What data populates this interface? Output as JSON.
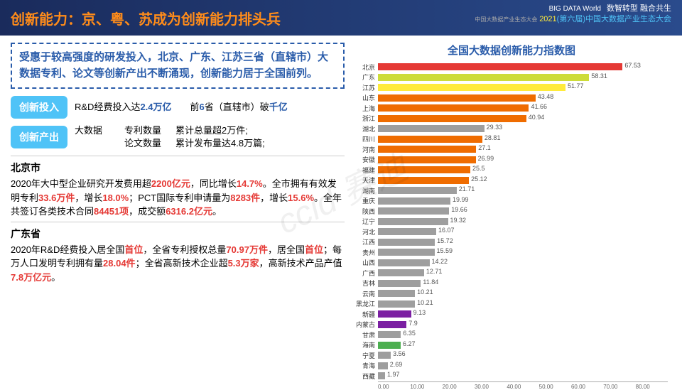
{
  "header": {
    "title": "创新能力：京、粤、苏成为创新能力排头兵",
    "logo": "BIG DATA World",
    "logo_sub": "中国大数据产业生态大会",
    "line1": "数智转型 融合共生",
    "line2_year": "2021",
    "line2_rest": "(第六届)中国大数据产业生态大会"
  },
  "summary": "受惠于较高强度的研发投入，北京、广东、江苏三省（直辖市）大数据专利、论文等创新产出不断涌现，创新能力居于全国前列。",
  "rows": [
    {
      "tag": "创新投入",
      "c1": "",
      "c2a": "R&D经费投入达",
      "c2a_hl": "2.4万亿",
      "c2b": "前",
      "c2b_hl": "6",
      "c2c": "省（直辖市）破",
      "c2c_hl": "千亿"
    },
    {
      "tag": "创新产出",
      "c1": "大数据",
      "l1": "专利数量",
      "l2": "论文数量",
      "r1": "累计总量超2万件;",
      "r2": "累计发布量达4.8万篇;"
    }
  ],
  "regions": [
    {
      "title": "北京市",
      "body": [
        {
          "t": "2020年大中型企业研究开发费用超",
          "r": "2200亿元"
        },
        {
          "t": "，同比增长",
          "r": "14.7%"
        },
        {
          "t": "。全市拥有有效发明专利",
          "r": "33.6万件"
        },
        {
          "t": "，增长",
          "r": "18.0%"
        },
        {
          "t": "；PCT国际专利申请量为",
          "r": "8283件"
        },
        {
          "t": "，增长",
          "r": "15.6%"
        },
        {
          "t": "。全年共签订各类技术合同",
          "r": "84451项"
        },
        {
          "t": "，成交额",
          "r": "6316.2亿元"
        },
        {
          "t": "。"
        }
      ]
    },
    {
      "title": "广东省",
      "body": [
        {
          "t": "2020年R&D经费投入居全国",
          "r": "首位"
        },
        {
          "t": "，全省专利授权总量",
          "r": "70.97万件"
        },
        {
          "t": "，居全国",
          "r": "首位"
        },
        {
          "t": "；每万人口发明专利拥有量",
          "r": "28.04件"
        },
        {
          "t": "；全省高新技术企业超",
          "r": "5.3万家"
        },
        {
          "t": "，高新技术产品产值",
          "r": "7.8万亿元"
        },
        {
          "t": "。"
        }
      ]
    }
  ],
  "chart": {
    "title": "全国大数据创新能力指数图",
    "xmax": 80,
    "xticks": [
      "0.00",
      "10.00",
      "20.00",
      "30.00",
      "40.00",
      "50.00",
      "60.00",
      "70.00",
      "80.00"
    ],
    "bars": [
      {
        "n": "北京",
        "v": 67.53,
        "c": "#e53935"
      },
      {
        "n": "广东",
        "v": 58.31,
        "c": "#cddc39"
      },
      {
        "n": "江苏",
        "v": 51.77,
        "c": "#ffeb3b"
      },
      {
        "n": "山东",
        "v": 43.48,
        "c": "#ef6c00"
      },
      {
        "n": "上海",
        "v": 41.66,
        "c": "#ef6c00"
      },
      {
        "n": "浙江",
        "v": 40.94,
        "c": "#ef6c00"
      },
      {
        "n": "湖北",
        "v": 29.33,
        "c": "#9e9e9e"
      },
      {
        "n": "四川",
        "v": 28.81,
        "c": "#ef6c00"
      },
      {
        "n": "河南",
        "v": 27.1,
        "c": "#ef6c00"
      },
      {
        "n": "安徽",
        "v": 26.99,
        "c": "#ef6c00"
      },
      {
        "n": "福建",
        "v": 25.5,
        "c": "#ef6c00"
      },
      {
        "n": "天津",
        "v": 25.12,
        "c": "#ef6c00"
      },
      {
        "n": "湖南",
        "v": 21.71,
        "c": "#9e9e9e"
      },
      {
        "n": "重庆",
        "v": 19.99,
        "c": "#9e9e9e"
      },
      {
        "n": "陕西",
        "v": 19.66,
        "c": "#9e9e9e"
      },
      {
        "n": "辽宁",
        "v": 19.32,
        "c": "#9e9e9e"
      },
      {
        "n": "河北",
        "v": 16.07,
        "c": "#9e9e9e"
      },
      {
        "n": "江西",
        "v": 15.72,
        "c": "#9e9e9e"
      },
      {
        "n": "贵州",
        "v": 15.59,
        "c": "#9e9e9e"
      },
      {
        "n": "山西",
        "v": 14.22,
        "c": "#9e9e9e"
      },
      {
        "n": "广西",
        "v": 12.71,
        "c": "#9e9e9e"
      },
      {
        "n": "吉林",
        "v": 11.84,
        "c": "#9e9e9e"
      },
      {
        "n": "云南",
        "v": 10.21,
        "c": "#9e9e9e"
      },
      {
        "n": "黑龙江",
        "v": 10.21,
        "c": "#9e9e9e"
      },
      {
        "n": "新疆",
        "v": 9.13,
        "c": "#7b1fa2"
      },
      {
        "n": "内蒙古",
        "v": 7.9,
        "c": "#7b1fa2"
      },
      {
        "n": "甘肃",
        "v": 6.35,
        "c": "#9e9e9e"
      },
      {
        "n": "海南",
        "v": 6.27,
        "c": "#4caf50"
      },
      {
        "n": "宁夏",
        "v": 3.56,
        "c": "#9e9e9e"
      },
      {
        "n": "青海",
        "v": 2.69,
        "c": "#9e9e9e"
      },
      {
        "n": "西藏",
        "v": 1.97,
        "c": "#9e9e9e"
      }
    ]
  },
  "watermark": "ccid 赛迪"
}
